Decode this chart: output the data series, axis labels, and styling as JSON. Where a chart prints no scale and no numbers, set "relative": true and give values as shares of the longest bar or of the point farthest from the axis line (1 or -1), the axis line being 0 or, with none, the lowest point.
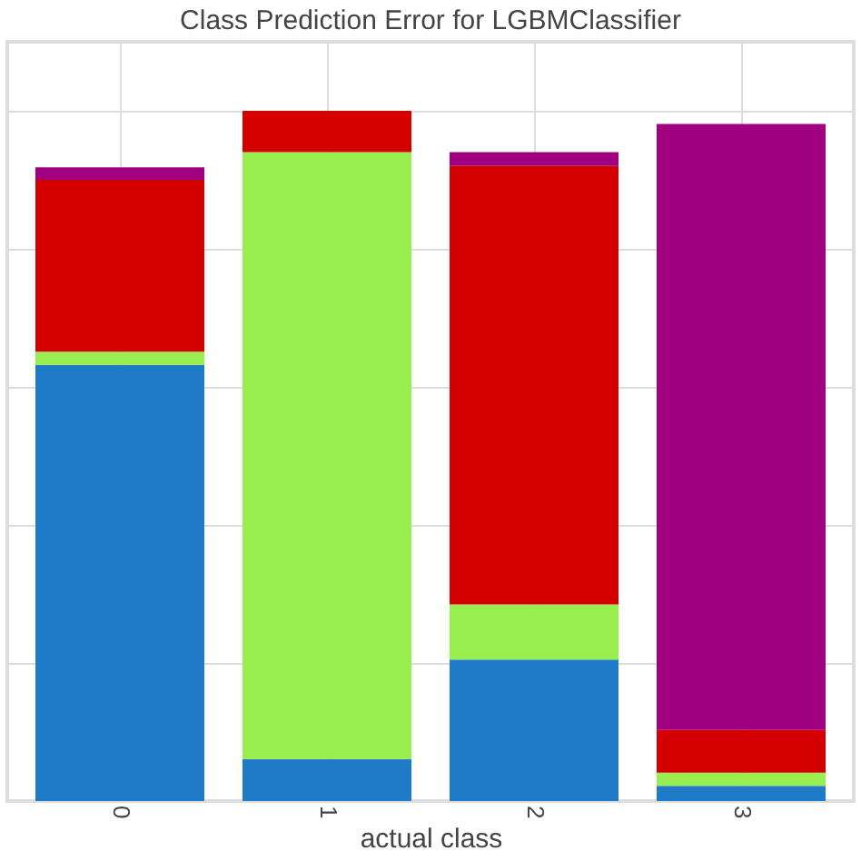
{
  "chart_data": {
    "type": "bar",
    "title": "Class Prediction Error for LGBMClassifier",
    "xlabel": "actual class",
    "categories": [
      "0",
      "1",
      "2",
      "3"
    ],
    "stacked": true,
    "relative": true,
    "grid": true,
    "series": [
      {
        "color": "#1f7bc8",
        "values": [
          0.632,
          0.061,
          0.205,
          0.022
        ]
      },
      {
        "color": "#99ee4f",
        "values": [
          0.019,
          0.879,
          0.08,
          0.019
        ]
      },
      {
        "color": "#d40000",
        "values": [
          0.249,
          0.06,
          0.635,
          0.062
        ]
      },
      {
        "color": "#a0007f",
        "values": [
          0.018,
          0.0,
          0.02,
          0.878
        ]
      }
    ]
  }
}
